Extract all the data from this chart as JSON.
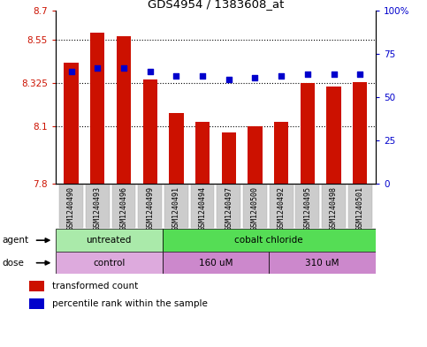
{
  "title": "GDS4954 / 1383608_at",
  "samples": [
    "GSM1240490",
    "GSM1240493",
    "GSM1240496",
    "GSM1240499",
    "GSM1240491",
    "GSM1240494",
    "GSM1240497",
    "GSM1240500",
    "GSM1240492",
    "GSM1240495",
    "GSM1240498",
    "GSM1240501"
  ],
  "bar_values": [
    8.43,
    8.585,
    8.565,
    8.34,
    8.17,
    8.12,
    8.065,
    8.1,
    8.12,
    8.325,
    8.305,
    8.33
  ],
  "bar_bottom": 7.8,
  "percentile_values": [
    65,
    67,
    67,
    65,
    62,
    62,
    60,
    61,
    62,
    63,
    63,
    63
  ],
  "ylim": [
    7.8,
    8.7
  ],
  "y_ticks": [
    7.8,
    8.1,
    8.325,
    8.55,
    8.7
  ],
  "y_tick_labels": [
    "7.8",
    "8.1",
    "8.325",
    "8.55",
    "8.7"
  ],
  "y2_ticks": [
    0,
    25,
    50,
    75,
    100
  ],
  "y2_tick_labels": [
    "0",
    "25",
    "50",
    "75",
    "100%"
  ],
  "bar_color": "#cc1100",
  "dot_color": "#0000cc",
  "agent_groups": [
    {
      "label": "untreated",
      "start": 0,
      "end": 4,
      "color": "#aaeaaa"
    },
    {
      "label": "cobalt chloride",
      "start": 4,
      "end": 12,
      "color": "#55dd55"
    }
  ],
  "dose_groups": [
    {
      "label": "control",
      "start": 0,
      "end": 4,
      "color": "#ddaadd"
    },
    {
      "label": "160 uM",
      "start": 4,
      "end": 8,
      "color": "#cc88cc"
    },
    {
      "label": "310 uM",
      "start": 8,
      "end": 12,
      "color": "#cc88cc"
    }
  ],
  "legend_items": [
    {
      "color": "#cc1100",
      "label": "transformed count"
    },
    {
      "color": "#0000cc",
      "label": "percentile rank within the sample"
    }
  ],
  "xlabel_bg": "#cccccc",
  "plot_bg_color": "#ffffff"
}
